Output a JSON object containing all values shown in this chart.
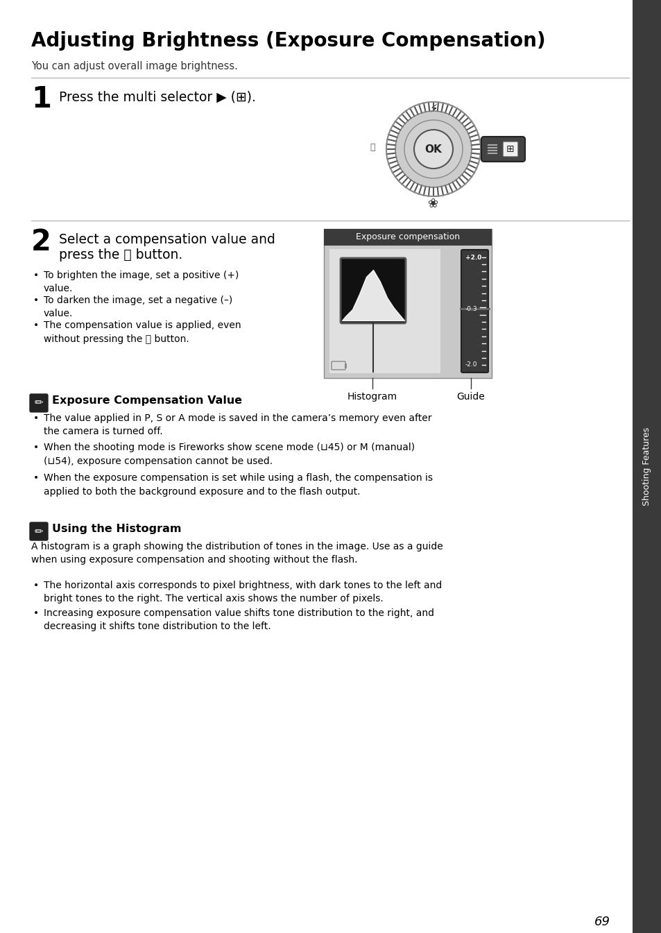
{
  "title": "Adjusting Brightness (Exposure Compensation)",
  "subtitle": "You can adjust overall image brightness.",
  "step1_number": "1",
  "step1_text": "Press the multi selector ▶ (⊞).",
  "step2_number": "2",
  "step2_text_line1": "Select a compensation value and",
  "step2_text_line2": "press the ⒪ button.",
  "step2_bullet1": "To brighten the image, set a positive (+)\nvalue.",
  "step2_bullet2": "To darken the image, set a negative (–)\nvalue.",
  "step2_bullet3": "The compensation value is applied, even\nwithout pressing the ⒪ button.",
  "exposure_label": "Exposure compensation",
  "histogram_label": "Histogram",
  "guide_label": "Guide",
  "note1_title": "Exposure Compensation Value",
  "note1_bullet1": "The value applied in P, S or A mode is saved in the camera’s memory even after\nthe camera is turned off.",
  "note1_bullet2": "When the shooting mode is Fireworks show scene mode (⊔45) or M (manual)\n(⊔54), exposure compensation cannot be used.",
  "note1_bullet3": "When the exposure compensation is set while using a flash, the compensation is\napplied to both the background exposure and to the flash output.",
  "note2_title": "Using the Histogram",
  "note2_intro": "A histogram is a graph showing the distribution of tones in the image. Use as a guide\nwhen using exposure compensation and shooting without the flash.",
  "note2_bullet1": "The horizontal axis corresponds to pixel brightness, with dark tones to the left and\nbright tones to the right. The vertical axis shows the number of pixels.",
  "note2_bullet2": "Increasing exposure compensation value shifts tone distribution to the right, and\ndecreasing it shifts tone distribution to the left.",
  "page_number": "69",
  "sidebar_text": "Shooting Features",
  "bg_color": "#ffffff",
  "text_color": "#000000",
  "sidebar_bg": "#3a3a3a",
  "divider_color": "#aaaaaa"
}
